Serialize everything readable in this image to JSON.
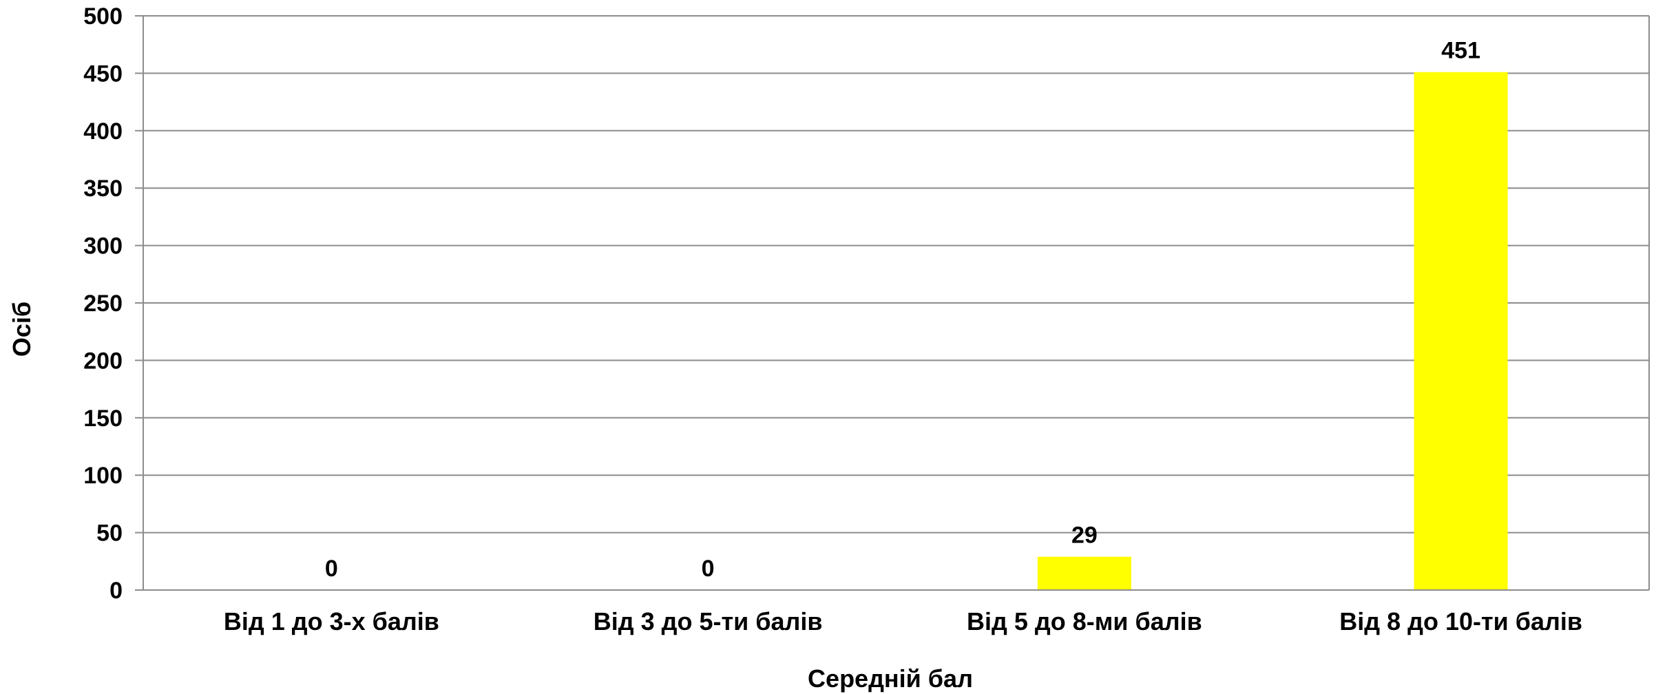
{
  "chart_data": {
    "type": "bar",
    "categories": [
      "Від 1 до 3-х балів",
      "Від 3 до 5-ти балів",
      "Від 5 до 8-ми балів",
      "Від 8 до 10-ти балів"
    ],
    "values": [
      0,
      0,
      29,
      451
    ],
    "data_labels": [
      "0",
      "0",
      "29",
      "451"
    ],
    "xlabel": "Середній бал",
    "ylabel": "Осіб",
    "ylim": [
      0,
      500
    ],
    "yticks": [
      0,
      50,
      100,
      150,
      200,
      250,
      300,
      350,
      400,
      450,
      500
    ],
    "grid": true,
    "legend": "none",
    "bar_color": "#ffff00",
    "grid_color": "#8c8c8c",
    "axis_color": "#8c8c8c"
  }
}
